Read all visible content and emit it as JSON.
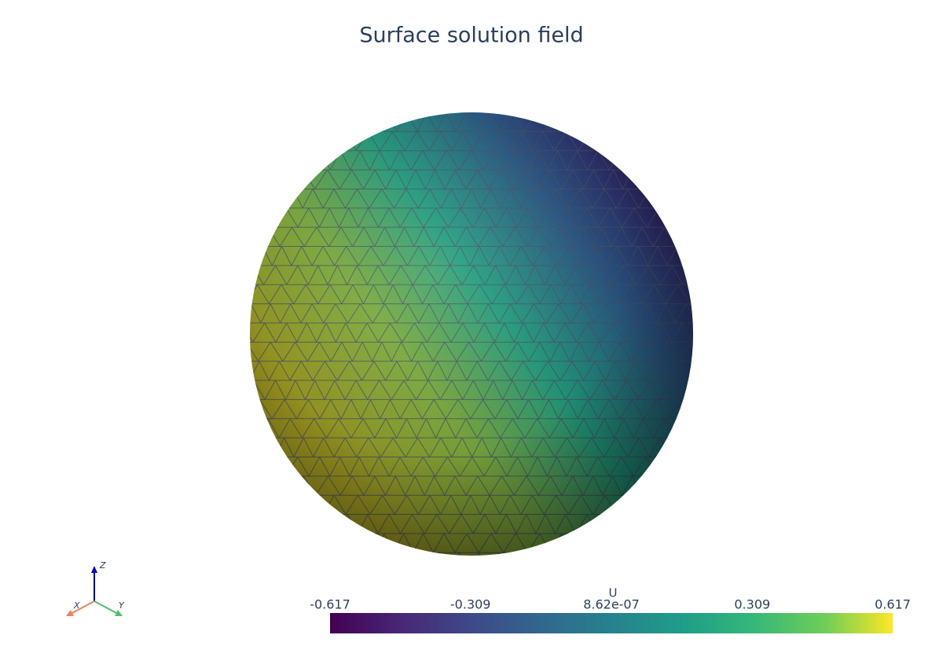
{
  "title": "Surface solution field",
  "colorbar": {
    "title": "U",
    "clim": [
      -0.617,
      0.617
    ],
    "ticks": [
      -0.617,
      -0.309,
      {
        "value": 8.62e-07,
        "label": "8.62e-07"
      },
      0.309,
      0.617
    ]
  },
  "axes": {
    "x": "X",
    "y": "Y",
    "z": "Z"
  }
}
